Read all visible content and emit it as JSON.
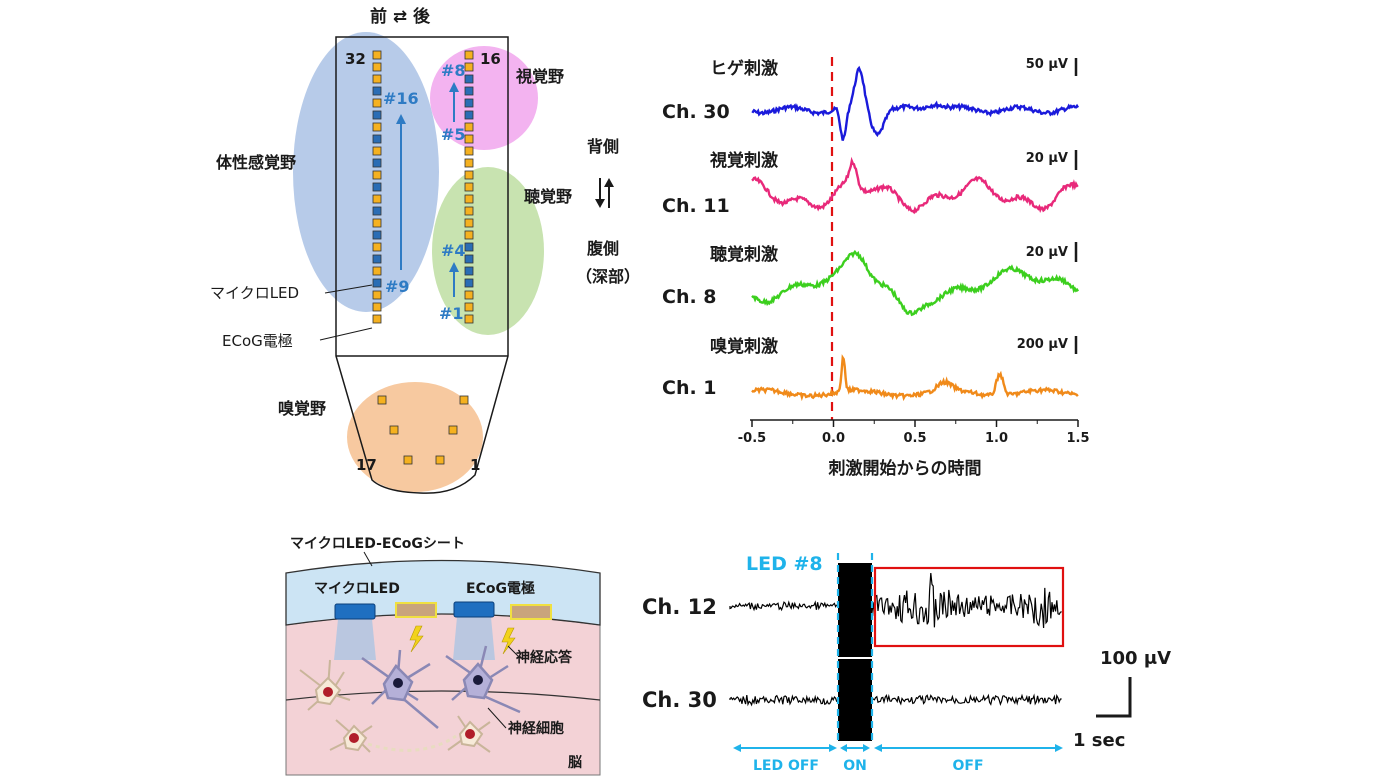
{
  "array_diagram": {
    "direction_top": "前 ⇄ 後",
    "label_32": "32",
    "label_16": "16",
    "label_17": "17",
    "label_1": "1",
    "led_16": "#16",
    "led_9": "#9",
    "led_8": "#8",
    "led_5": "#5",
    "led_4": "#4",
    "led_1": "#1",
    "somatosensory": "体性感覚野",
    "visual": "視覚野",
    "auditory": "聴覚野",
    "olfactory": "嗅覚野",
    "dorsal": "背側",
    "ventral": "腹側",
    "deep": "（深部）",
    "micro_led": "マイクロLED",
    "ecog_electrode": "ECoG電極",
    "colors": {
      "somatosensory": "#b7cbe9",
      "visual": "#f3b3f0",
      "auditory": "#c8e3b0",
      "olfactory": "#f7c9a0",
      "electrode": "#f5b120",
      "led": "#2a6db5"
    }
  },
  "evoked_panel": {
    "xlabel": "刺激開始からの時間",
    "ticks": [
      "-0.5",
      "0.0",
      "0.5",
      "1.0",
      "1.5"
    ],
    "traces": [
      {
        "stim": "ヒゲ刺激",
        "channel": "Ch. 30",
        "scale": "50 μV",
        "color": "#1a1adb"
      },
      {
        "stim": "視覚刺激",
        "channel": "Ch. 11",
        "scale": "20 μV",
        "color": "#e8297a"
      },
      {
        "stim": "聴覚刺激",
        "channel": "Ch. 8",
        "scale": "20 μV",
        "color": "#3ccf1e"
      },
      {
        "stim": "嗅覚刺激",
        "channel": "Ch. 1",
        "scale": "200 μV",
        "color": "#f08a1a"
      }
    ]
  },
  "sheet_diagram": {
    "sheet_title": "マイクロLED-ECoGシート",
    "micro_led": "マイクロLED",
    "ecog_electrode": "ECoG電極",
    "neural_response": "神経応答",
    "neuron": "神経細胞",
    "brain": "脳"
  },
  "optogenetic_panel": {
    "led_label": "LED #8",
    "ch12": "Ch. 12",
    "ch30": "Ch. 30",
    "scale_v": "100 μV",
    "scale_t": "1 sec",
    "phase_led_off": "LED OFF",
    "phase_on": "ON",
    "phase_off": "OFF"
  }
}
